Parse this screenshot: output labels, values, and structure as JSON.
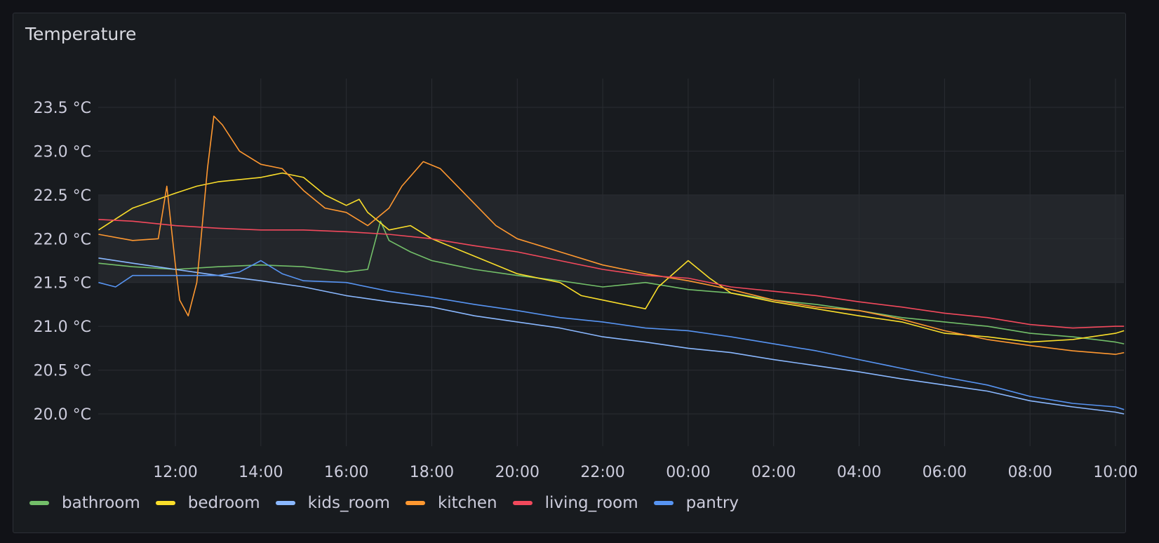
{
  "panel": {
    "title": "Temperature"
  },
  "chart_data": {
    "type": "line",
    "title": "Temperature",
    "unit": "°C",
    "ylim": [
      19.4,
      24.0
    ],
    "y_ticks": [
      20.0,
      20.5,
      21.0,
      21.5,
      22.0,
      22.5,
      23.0,
      23.5
    ],
    "y_tick_labels": [
      "20.0 °C",
      "20.5 °C",
      "21.0 °C",
      "21.5 °C",
      "22.0 °C",
      "22.5 °C",
      "23.0 °C",
      "23.5 °C"
    ],
    "x_ticks": [
      "12:00",
      "14:00",
      "16:00",
      "18:00",
      "20:00",
      "22:00",
      "00:00",
      "02:00",
      "04:00",
      "06:00",
      "08:00",
      "10:00"
    ],
    "x_tick_hours": [
      12,
      14,
      16,
      18,
      20,
      22,
      24,
      26,
      28,
      30,
      32,
      34
    ],
    "xlim_hours": [
      10.2,
      34.2
    ],
    "threshold_band": {
      "from": 21.5,
      "to": 22.5
    },
    "grid": true,
    "legend_position": "bottom-left",
    "series": [
      {
        "name": "bathroom",
        "color": "#73bf69",
        "points": [
          [
            10.2,
            21.72
          ],
          [
            11,
            21.68
          ],
          [
            12,
            21.65
          ],
          [
            13,
            21.68
          ],
          [
            14,
            21.7
          ],
          [
            15,
            21.68
          ],
          [
            16,
            21.62
          ],
          [
            16.5,
            21.65
          ],
          [
            16.8,
            22.2
          ],
          [
            17,
            21.98
          ],
          [
            17.5,
            21.85
          ],
          [
            18,
            21.75
          ],
          [
            19,
            21.65
          ],
          [
            20,
            21.58
          ],
          [
            21,
            21.52
          ],
          [
            22,
            21.45
          ],
          [
            23,
            21.5
          ],
          [
            24,
            21.42
          ],
          [
            25,
            21.38
          ],
          [
            26,
            21.3
          ],
          [
            27,
            21.25
          ],
          [
            28,
            21.18
          ],
          [
            29,
            21.1
          ],
          [
            30,
            21.05
          ],
          [
            31,
            21.0
          ],
          [
            32,
            20.92
          ],
          [
            33,
            20.88
          ],
          [
            34,
            20.82
          ],
          [
            34.2,
            20.8
          ]
        ]
      },
      {
        "name": "bedroom",
        "color": "#fade2a",
        "points": [
          [
            10.2,
            22.1
          ],
          [
            11,
            22.35
          ],
          [
            12,
            22.52
          ],
          [
            12.5,
            22.6
          ],
          [
            13,
            22.65
          ],
          [
            14,
            22.7
          ],
          [
            14.5,
            22.75
          ],
          [
            15,
            22.7
          ],
          [
            15.5,
            22.5
          ],
          [
            16,
            22.38
          ],
          [
            16.3,
            22.45
          ],
          [
            16.5,
            22.3
          ],
          [
            17,
            22.1
          ],
          [
            17.5,
            22.15
          ],
          [
            18,
            22.0
          ],
          [
            19,
            21.8
          ],
          [
            20,
            21.6
          ],
          [
            21,
            21.5
          ],
          [
            21.5,
            21.35
          ],
          [
            22,
            21.3
          ],
          [
            23,
            21.2
          ],
          [
            23.3,
            21.45
          ],
          [
            24,
            21.75
          ],
          [
            24.5,
            21.55
          ],
          [
            25,
            21.38
          ],
          [
            26,
            21.28
          ],
          [
            27,
            21.2
          ],
          [
            28,
            21.12
          ],
          [
            29,
            21.05
          ],
          [
            30,
            20.92
          ],
          [
            31,
            20.88
          ],
          [
            32,
            20.82
          ],
          [
            33,
            20.85
          ],
          [
            34,
            20.92
          ],
          [
            34.2,
            20.95
          ]
        ]
      },
      {
        "name": "kids_room",
        "color": "#8ab8ff",
        "points": [
          [
            10.2,
            21.78
          ],
          [
            11,
            21.72
          ],
          [
            12,
            21.65
          ],
          [
            13,
            21.58
          ],
          [
            14,
            21.52
          ],
          [
            15,
            21.45
          ],
          [
            16,
            21.35
          ],
          [
            17,
            21.28
          ],
          [
            18,
            21.22
          ],
          [
            19,
            21.12
          ],
          [
            20,
            21.05
          ],
          [
            21,
            20.98
          ],
          [
            22,
            20.88
          ],
          [
            23,
            20.82
          ],
          [
            24,
            20.75
          ],
          [
            25,
            20.7
          ],
          [
            26,
            20.62
          ],
          [
            27,
            20.55
          ],
          [
            28,
            20.48
          ],
          [
            29,
            20.4
          ],
          [
            30,
            20.33
          ],
          [
            31,
            20.26
          ],
          [
            32,
            20.15
          ],
          [
            33,
            20.08
          ],
          [
            34,
            20.02
          ],
          [
            34.2,
            20.0
          ]
        ]
      },
      {
        "name": "kitchen",
        "color": "#ff9830",
        "points": [
          [
            10.2,
            22.05
          ],
          [
            11,
            21.98
          ],
          [
            11.6,
            22.0
          ],
          [
            11.8,
            22.6
          ],
          [
            12.0,
            21.7
          ],
          [
            12.1,
            21.3
          ],
          [
            12.3,
            21.12
          ],
          [
            12.5,
            21.5
          ],
          [
            12.6,
            22.0
          ],
          [
            12.75,
            22.8
          ],
          [
            12.9,
            23.4
          ],
          [
            13.1,
            23.3
          ],
          [
            13.5,
            23.0
          ],
          [
            14,
            22.85
          ],
          [
            14.5,
            22.8
          ],
          [
            15,
            22.55
          ],
          [
            15.5,
            22.35
          ],
          [
            16,
            22.3
          ],
          [
            16.5,
            22.15
          ],
          [
            17,
            22.35
          ],
          [
            17.3,
            22.6
          ],
          [
            17.8,
            22.88
          ],
          [
            18.2,
            22.8
          ],
          [
            18.8,
            22.5
          ],
          [
            19.5,
            22.15
          ],
          [
            20,
            22.0
          ],
          [
            21,
            21.85
          ],
          [
            22,
            21.7
          ],
          [
            23,
            21.6
          ],
          [
            24,
            21.52
          ],
          [
            25,
            21.42
          ],
          [
            26,
            21.3
          ],
          [
            27,
            21.22
          ],
          [
            28,
            21.18
          ],
          [
            29,
            21.08
          ],
          [
            30,
            20.95
          ],
          [
            31,
            20.85
          ],
          [
            32,
            20.78
          ],
          [
            33,
            20.72
          ],
          [
            34,
            20.68
          ],
          [
            34.2,
            20.7
          ]
        ]
      },
      {
        "name": "living_room",
        "color": "#f2495c",
        "points": [
          [
            10.2,
            22.22
          ],
          [
            11,
            22.2
          ],
          [
            12,
            22.15
          ],
          [
            13,
            22.12
          ],
          [
            14,
            22.1
          ],
          [
            15,
            22.1
          ],
          [
            16,
            22.08
          ],
          [
            17,
            22.05
          ],
          [
            18,
            22.0
          ],
          [
            19,
            21.92
          ],
          [
            20,
            21.85
          ],
          [
            21,
            21.75
          ],
          [
            22,
            21.65
          ],
          [
            23,
            21.58
          ],
          [
            24,
            21.55
          ],
          [
            25,
            21.45
          ],
          [
            26,
            21.4
          ],
          [
            27,
            21.35
          ],
          [
            28,
            21.28
          ],
          [
            29,
            21.22
          ],
          [
            30,
            21.15
          ],
          [
            31,
            21.1
          ],
          [
            32,
            21.02
          ],
          [
            33,
            20.98
          ],
          [
            34,
            21.0
          ],
          [
            34.2,
            21.0
          ]
        ]
      },
      {
        "name": "pantry",
        "color": "#5794f2",
        "points": [
          [
            10.2,
            21.5
          ],
          [
            10.6,
            21.45
          ],
          [
            11,
            21.58
          ],
          [
            12,
            21.58
          ],
          [
            13,
            21.58
          ],
          [
            13.5,
            21.62
          ],
          [
            14,
            21.75
          ],
          [
            14.5,
            21.6
          ],
          [
            15,
            21.52
          ],
          [
            16,
            21.5
          ],
          [
            17,
            21.4
          ],
          [
            18,
            21.33
          ],
          [
            19,
            21.25
          ],
          [
            20,
            21.18
          ],
          [
            21,
            21.1
          ],
          [
            22,
            21.05
          ],
          [
            23,
            20.98
          ],
          [
            24,
            20.95
          ],
          [
            25,
            20.88
          ],
          [
            26,
            20.8
          ],
          [
            27,
            20.72
          ],
          [
            28,
            20.62
          ],
          [
            29,
            20.52
          ],
          [
            30,
            20.42
          ],
          [
            31,
            20.33
          ],
          [
            32,
            20.2
          ],
          [
            33,
            20.12
          ],
          [
            34,
            20.08
          ],
          [
            34.2,
            20.05
          ]
        ]
      }
    ]
  }
}
